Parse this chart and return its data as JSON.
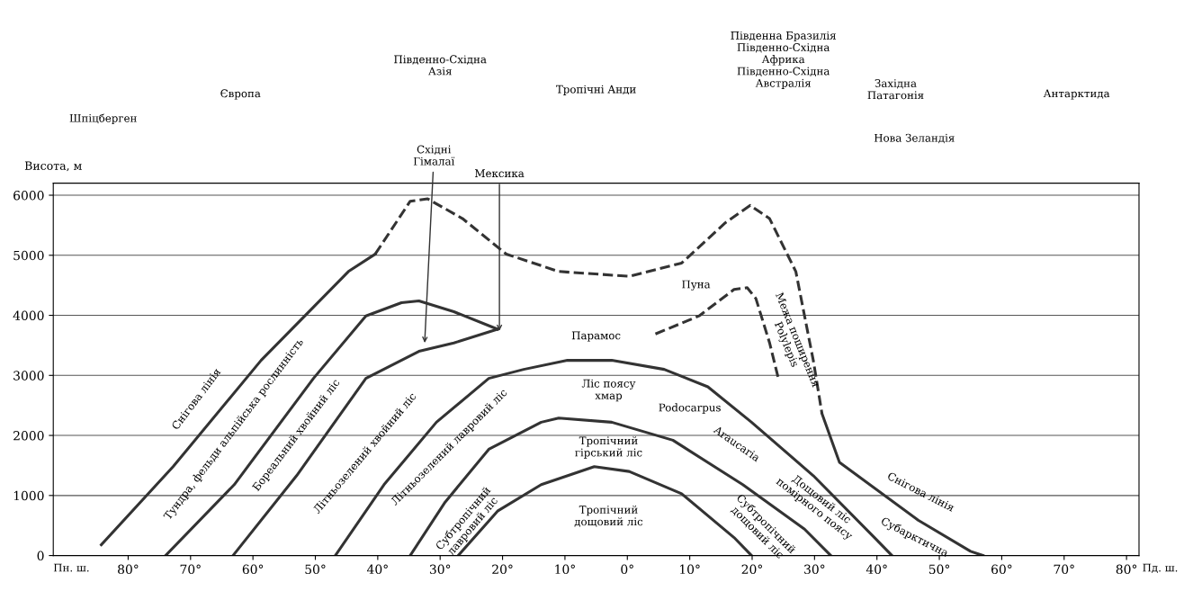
{
  "chart_data": {
    "type": "line",
    "ylabel": "Висота, м",
    "xlim": [
      92,
      -82
    ],
    "ylim": [
      0,
      6200
    ],
    "xticks": [
      {
        "value": 80,
        "label": "80°"
      },
      {
        "value": 70,
        "label": "70°"
      },
      {
        "value": 60,
        "label": "60°"
      },
      {
        "value": 50,
        "label": "50°"
      },
      {
        "value": 40,
        "label": "40°"
      },
      {
        "value": 30,
        "label": "30°"
      },
      {
        "value": 20,
        "label": "20°"
      },
      {
        "value": 10,
        "label": "10°"
      },
      {
        "value": 0,
        "label": "0°"
      },
      {
        "value": -10,
        "label": "10°"
      },
      {
        "value": -20,
        "label": "20°"
      },
      {
        "value": -30,
        "label": "30°"
      },
      {
        "value": -40,
        "label": "40°"
      },
      {
        "value": -50,
        "label": "50°"
      },
      {
        "value": -60,
        "label": "60°"
      },
      {
        "value": -70,
        "label": "70°"
      },
      {
        "value": -80,
        "label": "80°"
      }
    ],
    "yticks": [
      0,
      1000,
      2000,
      3000,
      4000,
      5000,
      6000
    ],
    "grid": "y",
    "legend": false,
    "marker": "none",
    "series": [
      {
        "color": "#333333",
        "line_style": "solid",
        "x": [
          84.3,
          72.8,
          58.7,
          44.7,
          40.4
        ],
        "values": [
          180,
          1480,
          3250,
          4730,
          5020
        ]
      },
      {
        "color": "#333333",
        "line_style": "dashed",
        "x": [
          40.4,
          34.8,
          32,
          26.4,
          19.4,
          11,
          -0.3,
          -8.7,
          -15.7,
          -19.7,
          -22.8,
          -27,
          -29.8,
          -31.2
        ],
        "values": [
          5020,
          5900,
          5940,
          5610,
          5020,
          4730,
          4650,
          4870,
          5540,
          5830,
          5610,
          4730,
          3250,
          2360
        ]
      },
      {
        "color": "#333333",
        "line_style": "solid",
        "x": [
          -31.2,
          -34,
          -46.6,
          -55,
          -57
        ],
        "values": [
          2360,
          1550,
          590,
          70,
          0
        ]
      },
      {
        "color": "#333333",
        "line_style": "solid",
        "x": [
          74,
          63,
          50.3,
          41.9,
          36.2,
          33.4,
          27.8,
          20.8
        ],
        "values": [
          0,
          1180,
          2950,
          3990,
          4210,
          4240,
          4060,
          3770
        ]
      },
      {
        "color": "#333333",
        "line_style": "solid",
        "x": [
          63.2,
          53,
          41.9,
          33.4,
          27.8,
          20.8
        ],
        "values": [
          0,
          1330,
          2950,
          3400,
          3540,
          3770
        ]
      },
      {
        "color": "#333333",
        "line_style": "solid",
        "x": [
          46.8,
          39,
          30.6,
          22.2,
          16.6,
          9.6,
          2.5,
          -5.9,
          -12.9,
          -19.9,
          -29.8,
          -39.6,
          -42.4
        ],
        "values": [
          0,
          1180,
          2220,
          2950,
          3100,
          3250,
          3250,
          3100,
          2810,
          2220,
          1330,
          300,
          0
        ]
      },
      {
        "color": "#333333",
        "line_style": "solid",
        "x": [
          34.8,
          29.2,
          22.2,
          13.8,
          11,
          2.5,
          -7.3,
          -18.5,
          -28.4,
          -32.6
        ],
        "values": [
          0,
          890,
          1770,
          2220,
          2290,
          2220,
          1920,
          1180,
          440,
          0
        ]
      },
      {
        "color": "#333333",
        "line_style": "solid",
        "x": [
          27.1,
          20.8,
          13.8,
          5.3,
          -0.3,
          -8.7,
          -17.1,
          -19.9
        ],
        "values": [
          0,
          740,
          1180,
          1480,
          1400,
          1030,
          300,
          0
        ]
      },
      {
        "color": "#333333",
        "line_style": "dashed",
        "x": [
          -4.5,
          -11.5,
          -17.1,
          -19.2,
          -20.6,
          -22.8,
          -24.2
        ],
        "values": [
          3690,
          3990,
          4430,
          4460,
          4280,
          3540,
          2950
        ]
      }
    ],
    "annotations": [
      "Пн. ш.",
      "Пд. ш.",
      "Шпіцберген",
      "Європа",
      "Південно-Східна\nАзія",
      "Тропічні Анди",
      "Південна Бразилія\nПівденно-Східна\nАфрика\nПівденно-Східна\nАвстралія",
      "Західна\nПатагонія",
      "Нова Зеландія",
      "Антарктида",
      {
        "text": "Східні\nГімалаї",
        "x": 32.5,
        "y": 3500
      },
      {
        "text": "Мексика",
        "x": 20.5,
        "y": 3700
      },
      "Снігова лінія",
      "Тундра, фельди альпійська рослинність",
      "Бореальний хвойний ліс",
      "Літньозелений хвойний ліс",
      "Літньозелений лавровий ліс",
      "Субтропічний\nлавровий ліс",
      "Тропічний\nдощовий ліс",
      "Тропічний\nгірський ліс",
      "Ліс поясу\nхмар",
      "Парамос",
      "Пуна",
      "Podocarpus",
      "Межа поширення\nPolylepis",
      "Araucaria",
      "Дощовий ліс\nпомірного поясу",
      "Субтропічний\nдощовий ліс",
      "Снігова лінія",
      "Субарктична"
    ]
  }
}
